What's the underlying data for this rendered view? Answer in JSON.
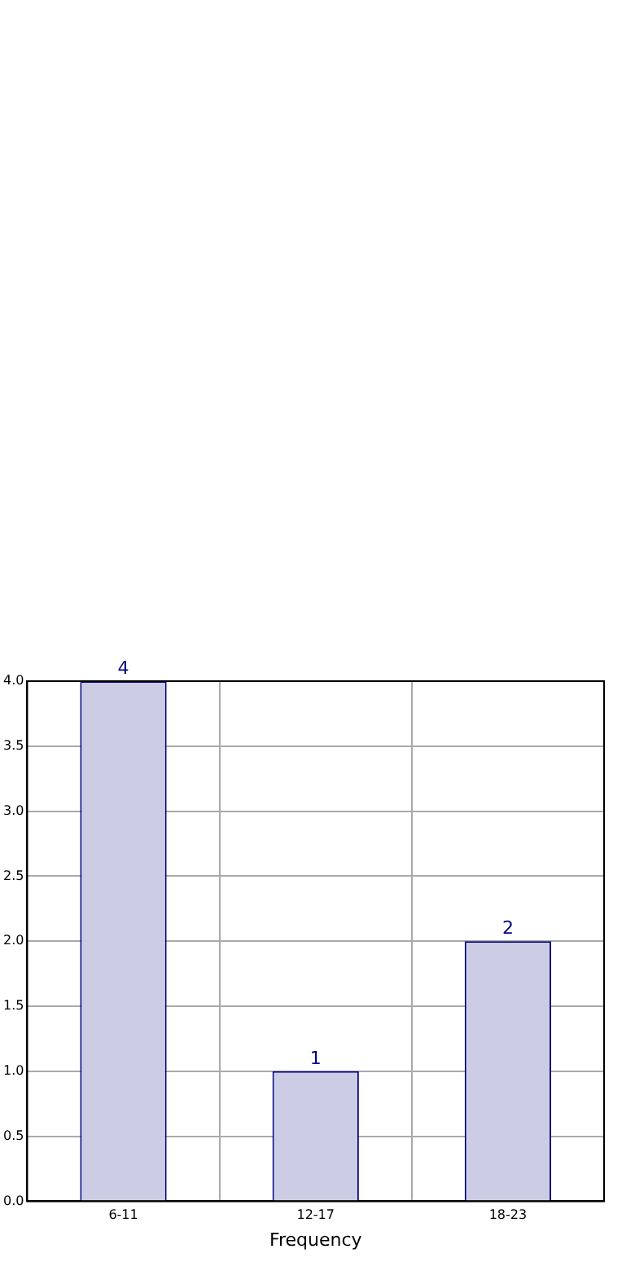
{
  "chart_data": {
    "type": "bar",
    "xlabel": "Frequency",
    "categories": [
      "6-11",
      "12-17",
      "18-23"
    ],
    "values": [
      4,
      1,
      2
    ],
    "color": "#ccccE5",
    "ylim": [
      0,
      4
    ],
    "yticks": [
      {
        "value": 0,
        "label": "0.0"
      },
      {
        "value": 0.5,
        "label": "0.5"
      },
      {
        "value": 1,
        "label": "1.0"
      },
      {
        "value": 1.5,
        "label": "1.5"
      },
      {
        "value": 2,
        "label": "2.0"
      },
      {
        "value": 2.5,
        "label": "2.5"
      },
      {
        "value": 3,
        "label": "3.0"
      },
      {
        "value": 3.5,
        "label": "3.5"
      },
      {
        "value": 4,
        "label": "4.0"
      }
    ],
    "grid": true,
    "data_labels": true
  }
}
